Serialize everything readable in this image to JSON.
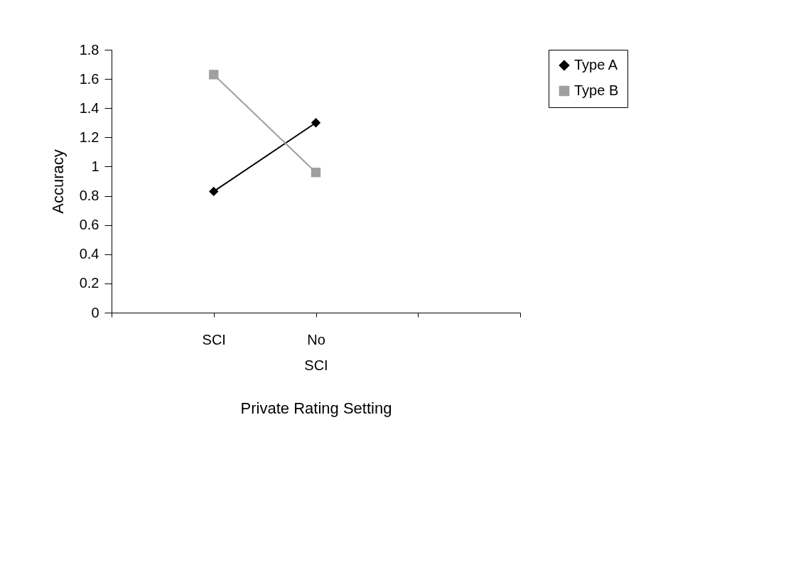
{
  "chart_data": {
    "type": "line",
    "xlabel": "Private Rating Setting",
    "ylabel": "Accuracy",
    "categories": [
      null,
      "SCI",
      "No SCI",
      null,
      null
    ],
    "series": [
      {
        "name": "Type A",
        "color": "#000000",
        "marker": "diamond",
        "values": [
          null,
          0.83,
          1.3,
          null,
          null
        ]
      },
      {
        "name": "Type B",
        "color": "#a0a0a0",
        "marker": "square",
        "values": [
          null,
          1.63,
          0.96,
          null,
          null
        ]
      }
    ],
    "ylim": [
      0,
      1.8
    ],
    "yticks": [
      0,
      0.2,
      0.4,
      0.6,
      0.8,
      1,
      1.2,
      1.4,
      1.6,
      1.8
    ],
    "grid": false,
    "legend": "right",
    "line_style": "solid"
  }
}
